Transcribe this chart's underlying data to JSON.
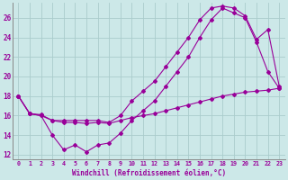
{
  "xlabel": "Windchill (Refroidissement éolien,°C)",
  "bg_color": "#cce8e8",
  "line_color": "#990099",
  "grid_color": "#aacccc",
  "xlim": [
    -0.5,
    23.5
  ],
  "ylim": [
    11.5,
    27.5
  ],
  "yticks": [
    12,
    14,
    16,
    18,
    20,
    22,
    24,
    26
  ],
  "xticks": [
    0,
    1,
    2,
    3,
    4,
    5,
    6,
    7,
    8,
    9,
    10,
    11,
    12,
    13,
    14,
    15,
    16,
    17,
    18,
    19,
    20,
    21,
    22,
    23
  ],
  "series": [
    {
      "x": [
        0,
        1,
        2,
        3,
        4,
        5,
        6,
        7,
        8,
        9,
        10,
        11,
        12,
        13,
        14,
        15,
        16,
        17,
        18,
        19,
        20,
        21,
        22,
        23
      ],
      "y": [
        18,
        16.2,
        16.1,
        15.5,
        15.3,
        15.3,
        15.2,
        15.3,
        15.2,
        15.5,
        15.8,
        16.0,
        16.2,
        16.5,
        16.8,
        17.1,
        17.4,
        17.7,
        18.0,
        18.2,
        18.4,
        18.5,
        18.6,
        18.8
      ]
    },
    {
      "x": [
        0,
        1,
        2,
        3,
        4,
        5,
        6,
        7,
        8,
        9,
        10,
        11,
        12,
        13,
        14,
        15,
        16,
        17,
        18,
        19,
        20,
        21,
        22,
        23
      ],
      "y": [
        18,
        16.2,
        16.0,
        14.0,
        12.5,
        13.0,
        12.3,
        13.0,
        13.2,
        14.2,
        15.5,
        16.5,
        17.5,
        19.0,
        20.5,
        22.0,
        24.0,
        25.8,
        27.0,
        26.5,
        26.0,
        23.5,
        20.5,
        18.8
      ]
    },
    {
      "x": [
        0,
        1,
        2,
        3,
        4,
        5,
        6,
        7,
        8,
        9,
        10,
        11,
        12,
        13,
        14,
        15,
        16,
        17,
        18,
        19,
        20,
        21,
        22,
        23
      ],
      "y": [
        18,
        16.2,
        16.0,
        15.5,
        15.5,
        15.5,
        15.5,
        15.5,
        15.3,
        16.0,
        17.5,
        18.5,
        19.5,
        21.0,
        22.5,
        24.0,
        25.8,
        27.0,
        27.2,
        27.0,
        26.2,
        23.8,
        24.8,
        19.0
      ]
    }
  ]
}
